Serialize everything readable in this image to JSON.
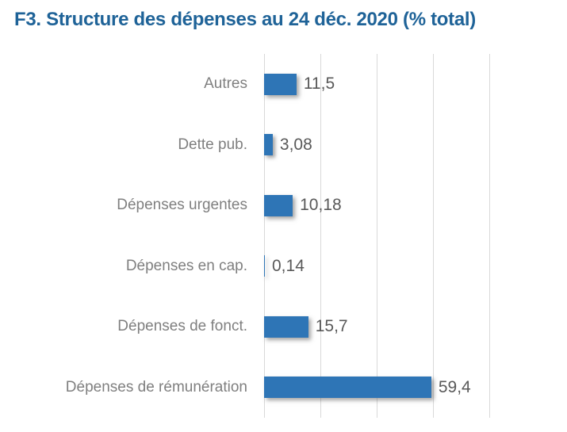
{
  "title": "F3. Structure des dépenses au 24 déc. 2020 (% total)",
  "colors": {
    "title": "#1F6398",
    "bar": "#2E75B6",
    "category_label": "#7F7F7F",
    "value_label": "#595959",
    "gridline": "#D9D9D9",
    "background": "#FFFFFF"
  },
  "chart_data": {
    "type": "bar",
    "orientation": "horizontal",
    "title": "F3. Structure des dépenses au 24 déc. 2020 (% total)",
    "categories": [
      "Autres",
      "Dette pub.",
      "Dépenses urgentes",
      "Dépenses en cap.",
      "Dépenses de fonct.",
      "Dépenses de rémunération"
    ],
    "values": [
      11.5,
      3.08,
      10.18,
      0.14,
      15.7,
      59.4
    ],
    "value_labels": [
      "11,5",
      "3,08",
      "10,18",
      "0,14",
      "15,7",
      "59,4"
    ],
    "xlabel": "",
    "ylabel": "",
    "xlim": [
      0,
      80
    ],
    "xticks": [
      0,
      20,
      40,
      60,
      80
    ],
    "grid": "vertical-only",
    "legend": "none",
    "data_labels": true
  }
}
